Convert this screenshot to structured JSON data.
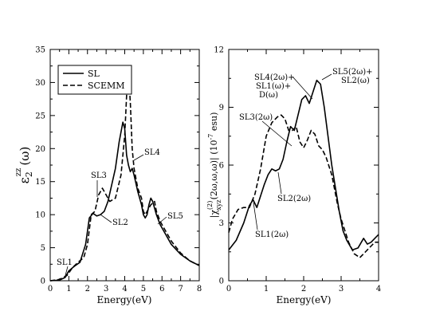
{
  "chart_data": [
    {
      "type": "line",
      "panel": "left",
      "xlabel": "Energy(eV)",
      "ylabel": "ε₂^zz(ω)",
      "xlim": [
        0,
        8
      ],
      "ylim": [
        0,
        35
      ],
      "xticks": [
        0,
        1,
        2,
        3,
        4,
        5,
        6,
        7,
        8
      ],
      "yticks": [
        0,
        5,
        10,
        15,
        20,
        25,
        30,
        35
      ],
      "legend_position": "top-left",
      "series": [
        {
          "name": "SL",
          "style": "solid",
          "x": [
            0,
            0.5,
            0.8,
            1.0,
            1.3,
            1.6,
            1.9,
            2.1,
            2.3,
            2.5,
            2.7,
            2.9,
            3.1,
            3.3,
            3.5,
            3.7,
            3.9,
            4.0,
            4.1,
            4.2,
            4.3,
            4.4,
            4.5,
            4.7,
            4.9,
            5.0,
            5.1,
            5.2,
            5.3,
            5.4,
            5.5,
            5.6,
            5.7,
            5.9,
            6.2,
            6.5,
            7.0,
            7.5,
            8.0
          ],
          "y": [
            0,
            0.1,
            0.5,
            1.5,
            2.2,
            2.8,
            5.5,
            9.5,
            10.2,
            9.8,
            10.0,
            10.5,
            12.0,
            14.5,
            17.0,
            21.0,
            24.0,
            23.0,
            19.0,
            17.5,
            16.5,
            17.0,
            16.0,
            13.5,
            11.5,
            10.0,
            9.5,
            10.0,
            11.5,
            12.5,
            12.0,
            11.0,
            10.0,
            8.5,
            7.0,
            5.5,
            4.0,
            3.0,
            2.3
          ]
        },
        {
          "name": "SCEMM",
          "style": "dashed",
          "x": [
            0,
            0.5,
            0.9,
            1.2,
            1.5,
            1.8,
            2.0,
            2.2,
            2.4,
            2.6,
            2.8,
            3.0,
            3.2,
            3.5,
            3.8,
            4.0,
            4.1,
            4.2,
            4.3,
            4.4,
            4.5,
            4.7,
            4.9,
            5.0,
            5.1,
            5.2,
            5.4,
            5.6,
            5.7,
            5.9,
            6.2,
            6.5,
            7.0,
            7.5,
            8.0
          ],
          "y": [
            0,
            0.2,
            0.8,
            2.0,
            2.8,
            3.5,
            5.5,
            10.0,
            10.5,
            13.0,
            14.0,
            13.0,
            12.0,
            12.5,
            16.0,
            22.0,
            28.0,
            31.5,
            27.0,
            20.0,
            17.0,
            14.0,
            12.5,
            10.5,
            10.0,
            10.5,
            11.5,
            12.0,
            10.5,
            9.0,
            7.5,
            6.0,
            4.2,
            3.0,
            2.3
          ]
        }
      ],
      "annotations": [
        "SL1",
        "SL2",
        "SL3",
        "SL4",
        "SL5"
      ]
    },
    {
      "type": "line",
      "panel": "right",
      "xlabel": "Energy(eV)",
      "ylabel": "|χ^(2)_xyz(2ω,ω,ω)| (10⁻⁷ esu)",
      "xlim": [
        0,
        4
      ],
      "ylim": [
        0,
        12
      ],
      "xticks": [
        0,
        1,
        2,
        3,
        4
      ],
      "yticks": [
        0,
        3,
        6,
        9,
        12
      ],
      "series": [
        {
          "name": "SL",
          "style": "solid",
          "x": [
            0,
            0.2,
            0.4,
            0.55,
            0.65,
            0.75,
            0.85,
            0.95,
            1.05,
            1.15,
            1.25,
            1.35,
            1.45,
            1.55,
            1.65,
            1.75,
            1.85,
            1.95,
            2.05,
            2.15,
            2.25,
            2.35,
            2.45,
            2.55,
            2.65,
            2.75,
            2.85,
            2.95,
            3.05,
            3.15,
            3.3,
            3.45,
            3.6,
            3.7,
            3.8,
            3.9,
            4.0
          ],
          "y": [
            1.6,
            2.1,
            3.0,
            3.9,
            4.2,
            3.8,
            4.4,
            5.0,
            5.5,
            5.8,
            5.7,
            5.8,
            6.3,
            7.2,
            8.0,
            7.8,
            8.6,
            9.4,
            9.6,
            9.2,
            9.8,
            10.4,
            10.2,
            9.0,
            7.5,
            6.0,
            4.8,
            3.6,
            2.6,
            2.1,
            1.6,
            1.7,
            2.2,
            1.9,
            2.0,
            2.2,
            2.4
          ]
        },
        {
          "name": "SCEMM",
          "style": "dashed",
          "x": [
            0,
            0.1,
            0.25,
            0.4,
            0.55,
            0.7,
            0.85,
            1.0,
            1.15,
            1.3,
            1.4,
            1.5,
            1.6,
            1.7,
            1.8,
            1.9,
            2.0,
            2.1,
            2.2,
            2.3,
            2.4,
            2.5,
            2.6,
            2.75,
            2.9,
            3.0,
            3.1,
            3.2,
            3.35,
            3.5,
            3.65,
            3.8,
            3.9,
            4.0
          ],
          "y": [
            2.5,
            3.2,
            3.7,
            3.8,
            3.8,
            4.5,
            5.8,
            7.5,
            8.2,
            8.5,
            8.6,
            8.4,
            7.8,
            7.8,
            8.0,
            7.2,
            6.9,
            7.3,
            7.8,
            7.6,
            7.0,
            6.8,
            6.4,
            5.5,
            4.0,
            3.2,
            2.6,
            2.0,
            1.4,
            1.2,
            1.5,
            1.8,
            2.0,
            2.0
          ]
        }
      ],
      "annotations": [
        "SL4(2ω)+",
        "SL1(ω)+",
        "D(ω)",
        "SL5(2ω)+",
        "SL2(ω)",
        "SL3(2ω)",
        "SL2(2ω)",
        "SL1(2ω)"
      ]
    }
  ],
  "labels": {
    "left_ylabel_main": "ε",
    "left_ylabel_sub": "2",
    "left_ylabel_sup": "zz",
    "left_ylabel_arg": "(ω)",
    "right_ylabel_pre": "|χ",
    "right_ylabel_sup": "(2)",
    "right_ylabel_sub": "xyz",
    "right_ylabel_post": "(2ω,ω,ω)| (10",
    "right_ylabel_exp": "-7",
    "right_ylabel_unit": " esu)"
  }
}
